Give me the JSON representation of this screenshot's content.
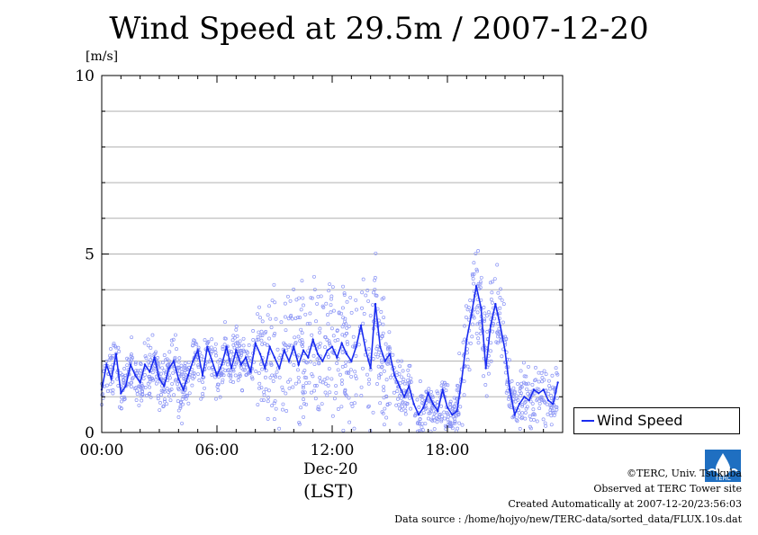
{
  "title": "Wind Speed at 29.5m / 2007-12-20",
  "y_unit": "[m/s]",
  "date_label": "Dec-20",
  "tz_label": "(LST)",
  "legend_label": "Wind Speed",
  "footer": {
    "copyright": "©TERC, Univ. Tsukuba",
    "observed": "Observed at TERC Tower site",
    "created": "Created Automatically at 2007-12-20/23:56:03",
    "source": "Data source : /home/hojyo/new/TERC-data/sorted_data/FLUX.10s.dat"
  },
  "logo_text": "TERC",
  "colors": {
    "line": "#1a2cf0",
    "points": "#8a94f5",
    "grid": "#b0b0b0"
  },
  "chart_data": {
    "type": "line",
    "title": "Wind Speed at 29.5m / 2007-12-20",
    "xlabel": "(LST)",
    "ylabel": "[m/s]",
    "xlim": [
      0,
      24
    ],
    "ylim": [
      0,
      10
    ],
    "grid": true,
    "legend_position": "bottom-right-outside",
    "x_ticks": [
      {
        "value": 0,
        "label": "00:00"
      },
      {
        "value": 6,
        "label": "06:00"
      },
      {
        "value": 12,
        "label": "12:00"
      },
      {
        "value": 18,
        "label": "18:00"
      }
    ],
    "y_ticks": [
      {
        "value": 0,
        "label": "0"
      },
      {
        "value": 5,
        "label": "5"
      },
      {
        "value": 10,
        "label": "10"
      }
    ],
    "series": [
      {
        "name": "Wind Speed",
        "x": [
          0,
          0.25,
          0.5,
          0.75,
          1,
          1.25,
          1.5,
          1.75,
          2,
          2.25,
          2.5,
          2.75,
          3,
          3.25,
          3.5,
          3.75,
          4,
          4.25,
          4.5,
          4.75,
          5,
          5.25,
          5.5,
          5.75,
          6,
          6.25,
          6.5,
          6.75,
          7,
          7.25,
          7.5,
          7.75,
          8,
          8.25,
          8.5,
          8.75,
          9,
          9.25,
          9.5,
          9.75,
          10,
          10.25,
          10.5,
          10.75,
          11,
          11.25,
          11.5,
          11.75,
          12,
          12.25,
          12.5,
          12.75,
          13,
          13.25,
          13.5,
          13.75,
          14,
          14.25,
          14.5,
          14.75,
          15,
          15.25,
          15.5,
          15.75,
          16,
          16.25,
          16.5,
          16.75,
          17,
          17.25,
          17.5,
          17.75,
          18,
          18.25,
          18.5,
          18.75,
          19,
          19.25,
          19.5,
          19.75,
          20,
          20.25,
          20.5,
          20.75,
          21,
          21.25,
          21.5,
          21.75,
          22,
          22.25,
          22.5,
          22.75,
          23,
          23.25,
          23.5,
          23.75
        ],
        "y": [
          1.2,
          1.9,
          1.5,
          2.2,
          1.1,
          1.3,
          1.9,
          1.6,
          1.4,
          1.9,
          1.7,
          2.1,
          1.5,
          1.3,
          1.8,
          2.0,
          1.5,
          1.2,
          1.6,
          2.0,
          2.3,
          1.6,
          2.4,
          2.0,
          1.6,
          1.9,
          2.4,
          1.8,
          2.3,
          1.9,
          2.1,
          1.7,
          2.5,
          2.2,
          1.8,
          2.4,
          2.1,
          1.8,
          2.3,
          2.0,
          2.4,
          1.9,
          2.3,
          2.1,
          2.6,
          2.2,
          2.0,
          2.3,
          2.4,
          2.1,
          2.5,
          2.2,
          2.0,
          2.4,
          3.0,
          2.3,
          1.8,
          3.6,
          2.4,
          2.0,
          2.2,
          1.6,
          1.3,
          1.0,
          1.3,
          0.8,
          0.5,
          0.7,
          1.1,
          0.8,
          0.6,
          1.2,
          0.7,
          0.5,
          0.6,
          1.5,
          2.6,
          3.3,
          4.1,
          3.5,
          1.8,
          3.0,
          3.6,
          3.0,
          2.3,
          1.2,
          0.5,
          0.8,
          1.0,
          0.9,
          1.2,
          1.1,
          1.2,
          0.9,
          0.8,
          1.4
        ]
      }
    ]
  }
}
